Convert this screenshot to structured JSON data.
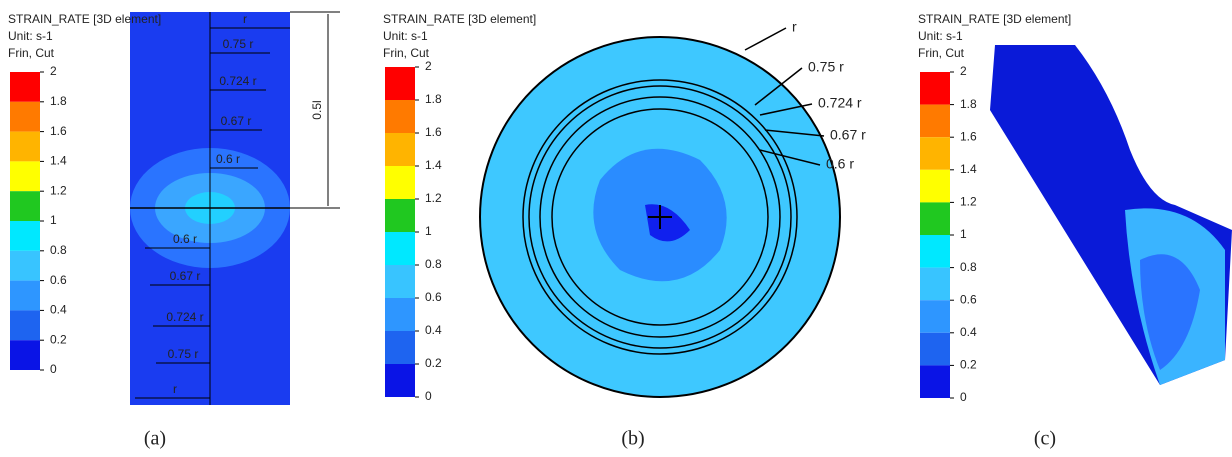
{
  "panels": [
    {
      "label": "(a)",
      "legend": {
        "title": "STRAIN_RATE [3D element]",
        "unit": "Unit: s-1",
        "note": "Frin, Cut",
        "ticks": [
          "2",
          "1.8",
          "1.6",
          "1.4",
          "1.2",
          "1",
          "0.8",
          "0.6",
          "0.4",
          "0.2",
          "0"
        ]
      },
      "annotations": [
        "r",
        "0.75 r",
        "0.724 r",
        "0.67 r",
        "0.6 r",
        "0.6 r",
        "0.67 r",
        "0.724 r",
        "0.75 r",
        "r",
        "0.5l"
      ]
    },
    {
      "label": "(b)",
      "legend": {
        "title": "STRAIN_RATE [3D element]",
        "unit": "Unit: s-1",
        "note": "Frin, Cut",
        "ticks": [
          "2",
          "1.8",
          "1.6",
          "1.4",
          "1.2",
          "1",
          "0.8",
          "0.6",
          "0.4",
          "0.2",
          "0"
        ]
      },
      "annotations": [
        "r",
        "0.75 r",
        "0.724 r",
        "0.67 r",
        "0.6 r"
      ]
    },
    {
      "label": "(c)",
      "legend": {
        "title": "STRAIN_RATE [3D element]",
        "unit": "Unit: s-1",
        "note": "Frin, Cut",
        "ticks": [
          "2",
          "1.8",
          "1.6",
          "1.4",
          "1.2",
          "1",
          "0.8",
          "0.6",
          "0.4",
          "0.2",
          "0"
        ]
      },
      "annotations": []
    }
  ],
  "scale_colors": [
    "#ff0000",
    "#ff7a00",
    "#ffb400",
    "#ffff00",
    "#20c820",
    "#00e8ff",
    "#38c4ff",
    "#2e96ff",
    "#1e64f0",
    "#0a14e6"
  ]
}
